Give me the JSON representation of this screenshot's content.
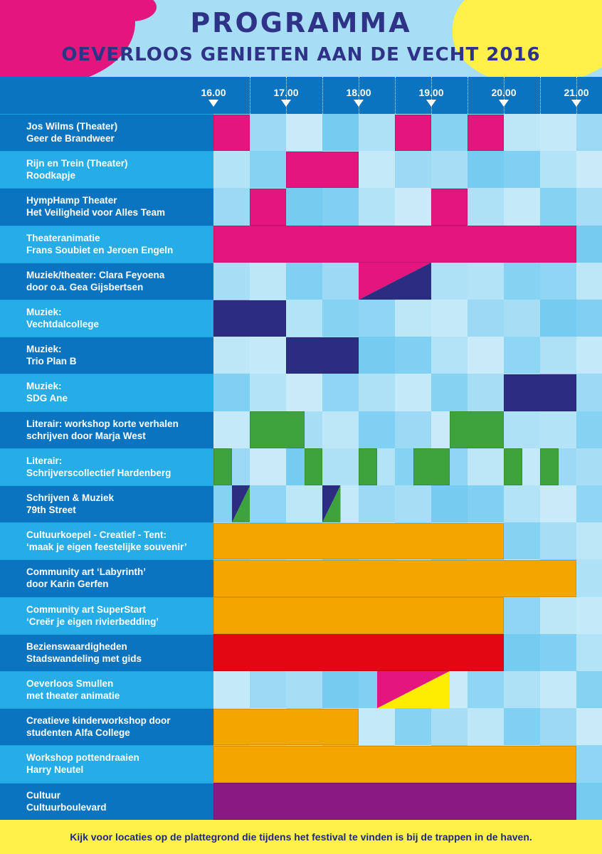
{
  "header": {
    "title": "PROGRAMMA",
    "subtitle": "OEVERLOOS GENIETEN AAN DE VECHT 2016"
  },
  "times": [
    "16.00",
    "17.00",
    "18.00",
    "19.00",
    "20.00",
    "21.00"
  ],
  "colors": {
    "theater": "#e5157e",
    "music": "#2b2e80",
    "literature": "#3ea33d",
    "culture": "#f5a500",
    "sights": "#e30613",
    "culture_boulevard": "#8a1a83",
    "smullen_yellow": "#ffed00"
  },
  "schedule": [
    {
      "line1": "Jos Wilms (Theater)",
      "line2": "Geer de Brandweer",
      "color": "theater",
      "slots": [
        [
          16.0,
          16.5
        ],
        [
          18.5,
          19.0
        ],
        [
          19.5,
          20.0
        ]
      ]
    },
    {
      "line1": "Rijn en Trein (Theater)",
      "line2": "Roodkapje",
      "color": "theater",
      "slots": [
        [
          17.0,
          18.0
        ]
      ]
    },
    {
      "line1": "HympHamp Theater",
      "line2": "Het Veiligheid voor Alles Team",
      "color": "theater",
      "slots": [
        [
          16.5,
          17.0
        ],
        [
          19.0,
          19.5
        ]
      ]
    },
    {
      "line1": "Theateranimatie",
      "line2": "Frans Soubiet en Jeroen Engeln",
      "color": "theater",
      "slots": [
        [
          16.0,
          21.0
        ]
      ]
    },
    {
      "line1": "Muziek/theater: Clara Feyoena",
      "line2": "door o.a. Gea Gijsbertsen",
      "color": "music",
      "split": [
        [
          18.0,
          19.0,
          "theater",
          "music"
        ]
      ]
    },
    {
      "line1": "Muziek:",
      "line2": "Vechtdalcollege",
      "color": "music",
      "slots": [
        [
          16.0,
          17.0
        ]
      ]
    },
    {
      "line1": "Muziek:",
      "line2": "Trio Plan B",
      "color": "music",
      "slots": [
        [
          17.0,
          18.0
        ]
      ]
    },
    {
      "line1": "Muziek:",
      "line2": "SDG Ane",
      "color": "music",
      "slots": [
        [
          20.0,
          21.0
        ]
      ]
    },
    {
      "line1": "Literair: workshop korte verhalen",
      "line2": "schrijven door Marja West",
      "color": "literature",
      "slots": [
        [
          16.5,
          17.25
        ],
        [
          19.25,
          20.0
        ]
      ]
    },
    {
      "line1": "Literair:",
      "line2": "Schrijverscollectief Hardenberg",
      "color": "literature",
      "slots": [
        [
          16.0,
          16.25
        ],
        [
          17.25,
          17.5
        ],
        [
          18.0,
          18.25
        ],
        [
          18.75,
          19.25
        ],
        [
          20.0,
          20.25
        ],
        [
          20.5,
          20.75
        ]
      ]
    },
    {
      "line1": "Schrijven & Muziek",
      "line2": "79th Street",
      "color": "literature",
      "split": [
        [
          16.25,
          16.5,
          "music",
          "literature"
        ],
        [
          17.5,
          17.75,
          "music",
          "literature"
        ]
      ]
    },
    {
      "line1": "Cultuurkoepel - Creatief - Tent:",
      "line2": "‘maak je eigen feestelijke souvenir’",
      "color": "culture",
      "slots": [
        [
          16.0,
          20.0
        ]
      ]
    },
    {
      "line1": "Community art ‘Labyrinth’",
      "line2": "door Karin Gerfen",
      "color": "culture",
      "slots": [
        [
          16.0,
          21.0
        ]
      ]
    },
    {
      "line1": "Community art SuperStart",
      "line2": "‘Creër je eigen rivierbedding’",
      "color": "culture",
      "slots": [
        [
          16.0,
          20.0
        ]
      ]
    },
    {
      "line1": "Bezienswaardigheden",
      "line2": "Stadswandeling met gids",
      "color": "sights",
      "slots": [
        [
          16.0,
          20.0
        ]
      ]
    },
    {
      "line1": "Oeverloos Smullen",
      "line2": "met theater animatie",
      "color": "smullen_yellow",
      "split": [
        [
          18.25,
          19.25,
          "theater",
          "smullen_yellow"
        ]
      ]
    },
    {
      "line1": "Creatieve kinderworkshop door",
      "line2": "studenten Alfa College",
      "color": "culture",
      "slots": [
        [
          16.0,
          18.0
        ]
      ]
    },
    {
      "line1": "Workshop pottendraaien",
      "line2": "Harry Neutel",
      "color": "culture",
      "slots": [
        [
          16.0,
          21.0
        ]
      ]
    },
    {
      "line1": "Cultuur",
      "line2": "Cultuurboulevard",
      "color": "culture_boulevard",
      "slots": [
        [
          16.0,
          21.0
        ]
      ]
    }
  ],
  "footer": {
    "text": "Kijk voor locaties op de plattegrond die tijdens het festival te vinden is bij de trappen in de haven."
  }
}
